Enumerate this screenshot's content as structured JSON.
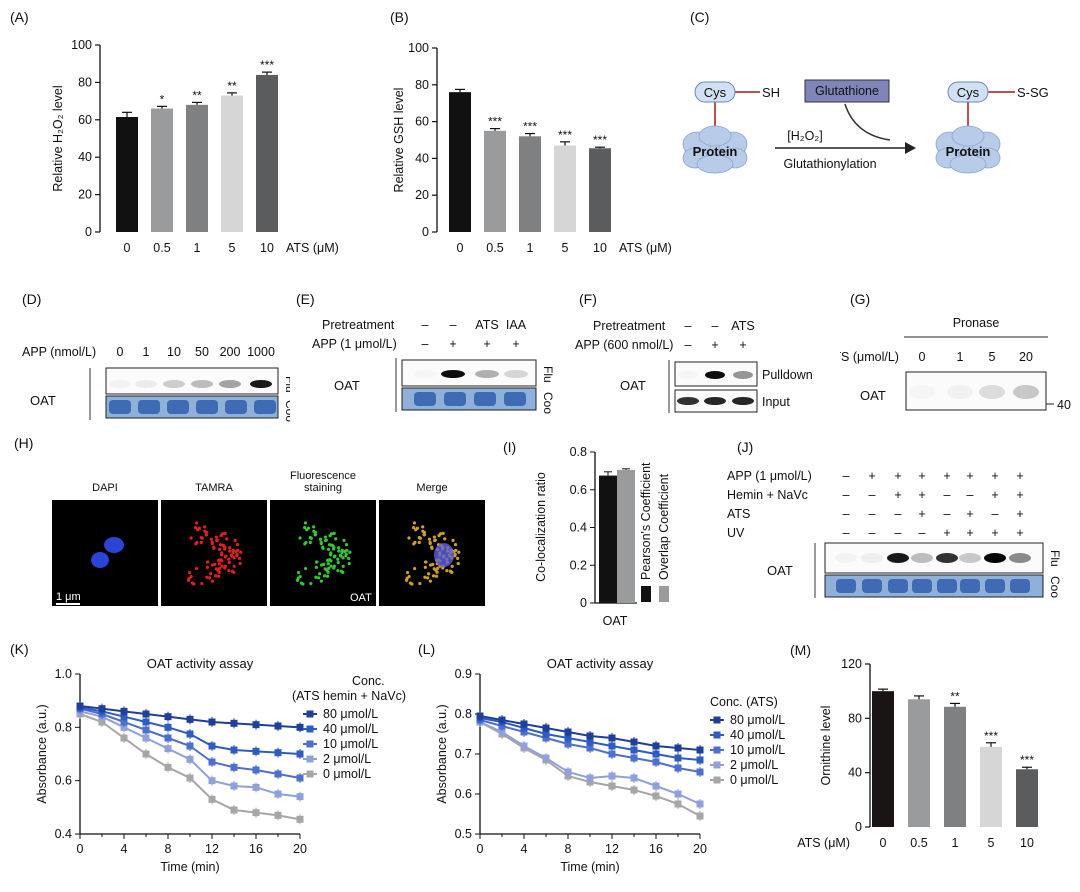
{
  "panels": {
    "A": {
      "label": "(A)",
      "chart_data": {
        "type": "bar",
        "categories": [
          "0",
          "0.5",
          "1",
          "5",
          "10"
        ],
        "values": [
          61.5,
          66,
          68,
          73,
          84
        ],
        "errors": [
          2.5,
          1.2,
          1.3,
          1.4,
          1.5
        ],
        "significance": [
          "",
          "*",
          "**",
          "**",
          "***"
        ],
        "colors": [
          "#111111",
          "#9a9b9d",
          "#7f8082",
          "#d6d6d6",
          "#5b5c5e"
        ],
        "ylabel": "Relative H₂O₂ level",
        "xunit": "ATS (μM)",
        "ylim": [
          0,
          100
        ],
        "yticks": [
          0,
          20,
          40,
          60,
          80,
          100
        ]
      }
    },
    "B": {
      "label": "(B)",
      "chart_data": {
        "type": "bar",
        "categories": [
          "0",
          "0.5",
          "1",
          "5",
          "10"
        ],
        "values": [
          76,
          55,
          52,
          47,
          45.5
        ],
        "errors": [
          1.5,
          1.2,
          1.5,
          2.0,
          0.6
        ],
        "significance": [
          "",
          "***",
          "***",
          "***",
          "***"
        ],
        "colors": [
          "#111111",
          "#9a9b9d",
          "#7f8082",
          "#d6d6d6",
          "#5b5c5e"
        ],
        "ylabel": "Relative GSH level",
        "xunit": "ATS (μM)",
        "ylim": [
          0,
          100
        ],
        "yticks": [
          0,
          20,
          40,
          60,
          80,
          100
        ]
      }
    },
    "C": {
      "label": "(C)",
      "cys": "Cys",
      "sh": "SH",
      "ssg": "S-SG",
      "protein": "Protein",
      "glutathione": "Glutathione",
      "h2o2": "[H₂O₂]",
      "reaction": "Glutathionylation",
      "protein_color": "#b8cbe8",
      "glutathione_color": "#7f85b8",
      "link_color": "#c0504d"
    },
    "D": {
      "label": "(D)",
      "row": "APP (nmol/L)",
      "lanes": [
        "0",
        "1",
        "10",
        "50",
        "200",
        "1000"
      ],
      "protein": "OAT",
      "flu": "Flu",
      "coo": "Coo"
    },
    "E": {
      "label": "(E)",
      "pretreatment": "Pretreatment",
      "pre_lanes": [
        "–",
        "–",
        "ATS",
        "IAA"
      ],
      "app": "APP (1 μmol/L)",
      "app_lanes": [
        "–",
        "+",
        "+",
        "+"
      ],
      "protein": "OAT",
      "flu": "Flu",
      "coo": "Coo"
    },
    "F": {
      "label": "(F)",
      "pretreatment": "Pretreatment",
      "pre_lanes": [
        "–",
        "–",
        "ATS"
      ],
      "app": "APP (600 nmol/L)",
      "app_lanes": [
        "–",
        "+",
        "+"
      ],
      "protein": "OAT",
      "pulldown": "Pulldown",
      "input": "Input"
    },
    "G": {
      "label": "(G)",
      "pronase": "Pronase",
      "ats": "ATS (μmol/L)",
      "lanes": [
        "0",
        "1",
        "5",
        "20"
      ],
      "protein": "OAT",
      "marker": "40"
    },
    "H": {
      "label": "(H)",
      "channels": [
        "DAPI",
        "TAMRA",
        "Fluorescence staining",
        "Merge"
      ],
      "scale": "1 μm",
      "tag": "OAT"
    },
    "I": {
      "label": "(I)",
      "chart_data": {
        "type": "bar",
        "categories": [
          "OAT"
        ],
        "series": [
          {
            "name": "Pearson's Coefficient",
            "values": [
              0.675
            ],
            "errors": [
              0.02
            ],
            "color": "#111111"
          },
          {
            "name": "Overlap Coefficient",
            "values": [
              0.705
            ],
            "errors": [
              0.006
            ],
            "color": "#9a9b9d"
          }
        ],
        "ylabel": "Co-localization ratio",
        "ylim": [
          0,
          0.8
        ],
        "yticks": [
          0,
          0.2,
          0.4,
          0.6,
          0.8
        ],
        "legend": "right"
      }
    },
    "J": {
      "label": "(J)",
      "rows": [
        {
          "name": "APP (1 μmol/L)",
          "marks": [
            "–",
            "+",
            "+",
            "+",
            "+",
            "+",
            "+",
            "+"
          ]
        },
        {
          "name": "Hemin + NaVc",
          "marks": [
            "–",
            "–",
            "+",
            "+",
            "–",
            "–",
            "+",
            "+"
          ]
        },
        {
          "name": "ATS",
          "marks": [
            "–",
            "–",
            "–",
            "+",
            "–",
            "+",
            "–",
            "+"
          ]
        },
        {
          "name": "UV",
          "marks": [
            "–",
            "–",
            "–",
            "–",
            "+",
            "+",
            "+",
            "+"
          ]
        }
      ],
      "protein": "OAT",
      "flu": "Flu",
      "coo": "Coo"
    },
    "K": {
      "label": "(K)",
      "chart_data": {
        "type": "line",
        "title": "OAT activity assay",
        "x": [
          0,
          2,
          4,
          6,
          8,
          10,
          12,
          14,
          16,
          18,
          20
        ],
        "series": [
          {
            "name": "80 μmol/L",
            "color": "#1f3f9a",
            "values": [
              0.88,
              0.87,
              0.86,
              0.85,
              0.84,
              0.83,
              0.82,
              0.815,
              0.81,
              0.805,
              0.8
            ]
          },
          {
            "name": "40 μmol/L",
            "color": "#2d5cc4",
            "values": [
              0.875,
              0.86,
              0.84,
              0.82,
              0.8,
              0.775,
              0.73,
              0.715,
              0.71,
              0.705,
              0.7
            ]
          },
          {
            "name": "10 μmol/L",
            "color": "#4e6fcf",
            "values": [
              0.87,
              0.85,
              0.82,
              0.79,
              0.76,
              0.73,
              0.67,
              0.65,
              0.64,
              0.625,
              0.61
            ]
          },
          {
            "name": "2 μmol/L",
            "color": "#8fa0dd",
            "values": [
              0.86,
              0.84,
              0.8,
              0.76,
              0.72,
              0.68,
              0.6,
              0.58,
              0.575,
              0.55,
              0.54
            ]
          },
          {
            "name": "0 μmol/L",
            "color": "#a6a6a6",
            "values": [
              0.85,
              0.82,
              0.76,
              0.7,
              0.65,
              0.61,
              0.53,
              0.49,
              0.48,
              0.47,
              0.455
            ]
          }
        ],
        "xlabel": "Time (min)",
        "ylabel": "Absorbance (a.u.)",
        "ylim": [
          0.4,
          1.0
        ],
        "yticks": [
          0.4,
          0.6,
          0.8,
          1.0
        ],
        "xticks": [
          0,
          4,
          8,
          12,
          16,
          20
        ],
        "legend_title": "Conc.",
        "legend_subtitle": "(ATS hemin + NaVc)",
        "legend": "right"
      }
    },
    "L": {
      "label": "(L)",
      "chart_data": {
        "type": "line",
        "title": "OAT activity assay",
        "x": [
          0,
          2,
          4,
          6,
          8,
          10,
          12,
          14,
          16,
          18,
          20
        ],
        "series": [
          {
            "name": "80 μmol/L",
            "color": "#1f3f9a",
            "values": [
              0.795,
              0.785,
              0.775,
              0.765,
              0.755,
              0.745,
              0.74,
              0.73,
              0.72,
              0.715,
              0.71
            ]
          },
          {
            "name": "40 μmol/L",
            "color": "#2d5cc4",
            "values": [
              0.79,
              0.78,
              0.765,
              0.75,
              0.74,
              0.73,
              0.72,
              0.71,
              0.7,
              0.69,
              0.685
            ]
          },
          {
            "name": "10 μmol/L",
            "color": "#4e6fcf",
            "values": [
              0.785,
              0.77,
              0.755,
              0.74,
              0.725,
              0.715,
              0.7,
              0.69,
              0.68,
              0.665,
              0.655
            ]
          },
          {
            "name": "2 μmol/L",
            "color": "#8fa0dd",
            "values": [
              0.78,
              0.755,
              0.72,
              0.69,
              0.655,
              0.64,
              0.645,
              0.64,
              0.62,
              0.6,
              0.575
            ]
          },
          {
            "name": "0 μmol/L",
            "color": "#a6a6a6",
            "values": [
              0.78,
              0.75,
              0.715,
              0.685,
              0.645,
              0.63,
              0.62,
              0.61,
              0.595,
              0.575,
              0.545
            ]
          }
        ],
        "xlabel": "Time (min)",
        "ylabel": "Absorbance (a.u.)",
        "ylim": [
          0.5,
          0.9
        ],
        "yticks": [
          0.5,
          0.6,
          0.7,
          0.8,
          0.9
        ],
        "xticks": [
          0,
          4,
          8,
          12,
          16,
          20
        ],
        "legend_title": "Conc. (ATS)",
        "legend": "right"
      }
    },
    "M": {
      "label": "(M)",
      "chart_data": {
        "type": "bar",
        "categories": [
          "0",
          "0.5",
          "1",
          "5",
          "10"
        ],
        "values": [
          100,
          94,
          88.5,
          59,
          42.5
        ],
        "errors": [
          1.5,
          2.5,
          2.5,
          3.0,
          1.5
        ],
        "significance": [
          "",
          "",
          "**",
          "***",
          "***"
        ],
        "colors": [
          "#1a1414",
          "#9a9b9d",
          "#7f8082",
          "#d6d6d6",
          "#5b5c5e"
        ],
        "ylabel": "Ornithine level",
        "xunit": "ATS (μM)",
        "ylim": [
          0,
          120
        ],
        "yticks": [
          0,
          40,
          80,
          120
        ]
      }
    }
  }
}
